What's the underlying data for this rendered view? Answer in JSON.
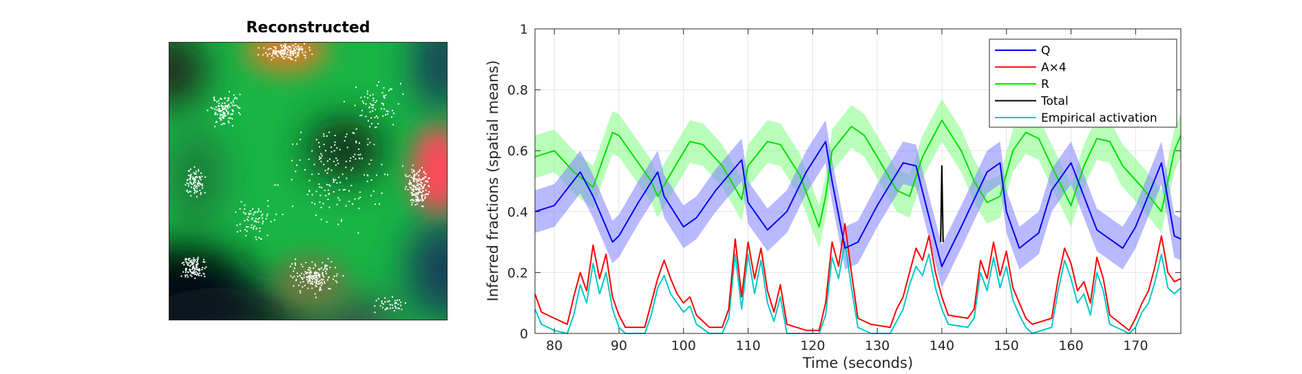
{
  "left_panel": {
    "title": "Reconstructed"
  },
  "chart_data": {
    "type": "line",
    "xlabel": "Time (seconds)",
    "ylabel": "Inferred fractions (spatial means)",
    "xlim": [
      77,
      177
    ],
    "ylim": [
      0,
      1
    ],
    "xticks": [
      "80",
      "90",
      "100",
      "110",
      "120",
      "130",
      "140",
      "150",
      "160",
      "170"
    ],
    "yticks": [
      "0",
      "0.2",
      "0.4",
      "0.6",
      "0.8",
      "1"
    ],
    "grid": true,
    "legend_position": "top-right",
    "series": [
      {
        "name": "Q",
        "color": "#0000ff",
        "band_color": "#8080ff",
        "x": [
          77,
          80,
          84,
          86,
          89,
          90,
          93,
          96,
          97,
          100,
          102,
          105,
          109,
          110,
          113,
          116,
          119,
          122,
          123,
          125,
          127,
          130,
          134,
          136,
          139,
          140,
          143,
          147,
          149,
          150,
          152,
          155,
          157,
          160,
          162,
          164,
          168,
          170,
          174,
          176,
          177
        ],
        "y": [
          0.4,
          0.42,
          0.53,
          0.45,
          0.3,
          0.32,
          0.43,
          0.53,
          0.45,
          0.35,
          0.38,
          0.47,
          0.57,
          0.43,
          0.34,
          0.4,
          0.53,
          0.63,
          0.5,
          0.28,
          0.3,
          0.42,
          0.56,
          0.55,
          0.3,
          0.22,
          0.35,
          0.53,
          0.56,
          0.4,
          0.28,
          0.33,
          0.47,
          0.56,
          0.45,
          0.34,
          0.28,
          0.35,
          0.56,
          0.32,
          0.31
        ]
      },
      {
        "name": "A×4",
        "color": "#ff0000",
        "x": [
          77,
          78,
          80,
          82,
          83,
          84,
          85,
          86,
          87,
          88,
          89,
          90,
          91,
          94,
          95,
          96,
          97,
          98,
          99,
          100,
          101,
          102,
          104,
          106,
          107,
          108,
          109,
          110,
          111,
          112,
          113,
          114,
          115,
          116,
          119,
          121,
          122,
          123,
          124,
          125,
          126,
          127,
          129,
          132,
          133,
          134,
          135,
          136,
          137,
          138,
          139,
          140,
          141,
          144,
          145,
          146,
          147,
          148,
          149,
          150,
          151,
          152,
          153,
          154,
          157,
          158,
          159,
          160,
          161,
          162,
          163,
          164,
          165,
          166,
          169,
          170,
          171,
          172,
          173,
          174,
          175,
          176,
          177
        ],
        "y": [
          0.13,
          0.07,
          0.05,
          0.03,
          0.12,
          0.2,
          0.14,
          0.29,
          0.18,
          0.26,
          0.12,
          0.06,
          0.02,
          0.02,
          0.1,
          0.18,
          0.24,
          0.18,
          0.13,
          0.1,
          0.12,
          0.06,
          0.02,
          0.02,
          0.08,
          0.31,
          0.12,
          0.3,
          0.18,
          0.28,
          0.14,
          0.07,
          0.16,
          0.03,
          0.01,
          0.01,
          0.1,
          0.3,
          0.22,
          0.36,
          0.2,
          0.05,
          0.03,
          0.02,
          0.08,
          0.12,
          0.2,
          0.28,
          0.24,
          0.32,
          0.2,
          0.12,
          0.06,
          0.05,
          0.08,
          0.24,
          0.18,
          0.3,
          0.19,
          0.27,
          0.15,
          0.1,
          0.05,
          0.03,
          0.05,
          0.18,
          0.28,
          0.23,
          0.14,
          0.17,
          0.1,
          0.25,
          0.18,
          0.06,
          0.01,
          0.05,
          0.1,
          0.14,
          0.22,
          0.32,
          0.2,
          0.17,
          0.18
        ]
      },
      {
        "name": "R",
        "color": "#00e000",
        "band_color": "#80ff80",
        "x": [
          77,
          80,
          83,
          86,
          89,
          90,
          93,
          95,
          96,
          99,
          101,
          103,
          106,
          109,
          110,
          113,
          115,
          118,
          121,
          122,
          123,
          126,
          128,
          130,
          133,
          135,
          137,
          140,
          143,
          145,
          147,
          149,
          151,
          153,
          155,
          157,
          160,
          162,
          164,
          166,
          168,
          171,
          174,
          176,
          177
        ],
        "y": [
          0.58,
          0.6,
          0.53,
          0.48,
          0.66,
          0.65,
          0.56,
          0.5,
          0.45,
          0.56,
          0.63,
          0.62,
          0.55,
          0.44,
          0.55,
          0.63,
          0.62,
          0.52,
          0.35,
          0.45,
          0.6,
          0.68,
          0.65,
          0.58,
          0.47,
          0.45,
          0.58,
          0.7,
          0.6,
          0.5,
          0.43,
          0.45,
          0.6,
          0.66,
          0.64,
          0.55,
          0.42,
          0.55,
          0.64,
          0.63,
          0.55,
          0.48,
          0.4,
          0.6,
          0.65
        ]
      },
      {
        "name": "Total",
        "color": "#000000",
        "x": [
          139.8,
          140,
          140.2
        ],
        "y": [
          0.3,
          0.55,
          0.3
        ]
      },
      {
        "name": "Empirical activation",
        "color": "#00c8c8",
        "x": [
          77,
          78,
          80,
          82,
          83,
          84,
          85,
          86,
          87,
          88,
          89,
          90,
          91,
          94,
          95,
          96,
          97,
          98,
          99,
          100,
          101,
          102,
          104,
          106,
          107,
          108,
          109,
          110,
          111,
          112,
          113,
          114,
          115,
          116,
          119,
          121,
          122,
          123,
          124,
          125,
          126,
          127,
          129,
          132,
          133,
          134,
          135,
          136,
          137,
          138,
          139,
          140,
          141,
          144,
          145,
          146,
          147,
          148,
          149,
          150,
          151,
          152,
          153,
          154,
          157,
          158,
          159,
          160,
          161,
          162,
          163,
          164,
          165,
          166,
          169,
          170,
          171,
          172,
          173,
          174,
          175,
          176,
          177
        ],
        "y": [
          0.08,
          0.03,
          0.01,
          0.0,
          0.06,
          0.16,
          0.1,
          0.23,
          0.13,
          0.2,
          0.08,
          0.02,
          0.0,
          0.0,
          0.06,
          0.15,
          0.19,
          0.13,
          0.1,
          0.07,
          0.09,
          0.03,
          0.0,
          0.0,
          0.05,
          0.26,
          0.08,
          0.26,
          0.13,
          0.24,
          0.1,
          0.04,
          0.12,
          0.0,
          0.0,
          0.0,
          0.06,
          0.25,
          0.18,
          0.3,
          0.15,
          0.02,
          0.0,
          0.0,
          0.04,
          0.08,
          0.16,
          0.22,
          0.19,
          0.26,
          0.15,
          0.08,
          0.03,
          0.02,
          0.05,
          0.2,
          0.14,
          0.25,
          0.15,
          0.22,
          0.11,
          0.06,
          0.02,
          0.0,
          0.02,
          0.14,
          0.24,
          0.18,
          0.1,
          0.13,
          0.06,
          0.2,
          0.14,
          0.03,
          0.0,
          0.02,
          0.07,
          0.1,
          0.17,
          0.26,
          0.15,
          0.13,
          0.15
        ]
      }
    ]
  }
}
